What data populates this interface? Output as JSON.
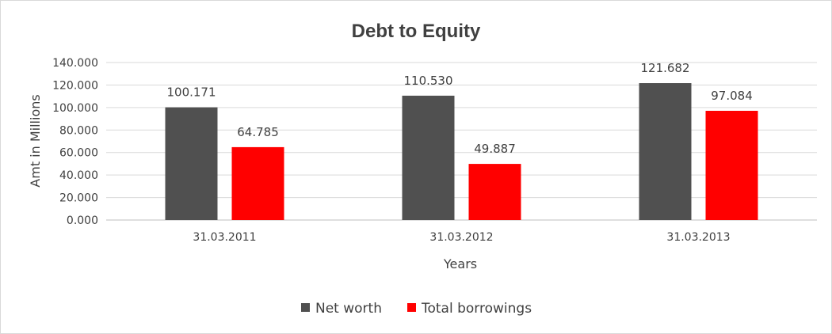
{
  "chart_data": {
    "type": "bar",
    "title": "Debt to Equity",
    "xlabel": "Years",
    "ylabel": "Amt in Millions",
    "categories": [
      "31.03.2011",
      "31.03.2012",
      "31.03.2013"
    ],
    "series": [
      {
        "name": "Net worth",
        "color": "#505050",
        "values": [
          100.171,
          110.53,
          121.682
        ],
        "labels": [
          "100.171",
          "110.530",
          "121.682"
        ]
      },
      {
        "name": "Total borrowings",
        "color": "#ff0000",
        "values": [
          64.785,
          49.887,
          97.084
        ],
        "labels": [
          "64.785",
          "49.887",
          "97.084"
        ]
      }
    ],
    "ylim": [
      0,
      140
    ],
    "yticks": [
      0,
      20,
      40,
      60,
      80,
      100,
      120,
      140
    ],
    "ytick_labels": [
      "0.000",
      "20.000",
      "40.000",
      "60.000",
      "80.000",
      "100.000",
      "120.000",
      "140.000"
    ],
    "grid": true,
    "legend_position": "bottom"
  }
}
